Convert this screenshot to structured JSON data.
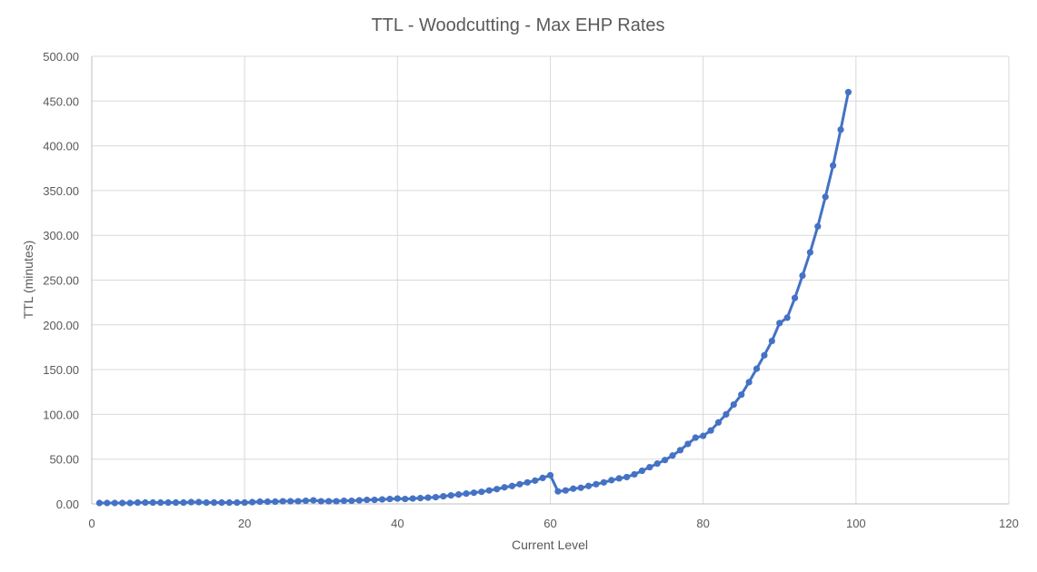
{
  "chart_data": {
    "type": "line",
    "title": "TTL  - Woodcutting  - Max EHP Rates",
    "xlabel": "Current Level",
    "ylabel": "TTL (minutes)",
    "xlim": [
      0,
      120
    ],
    "ylim": [
      0,
      500
    ],
    "x_ticks": [
      "0",
      "20",
      "40",
      "60",
      "80",
      "100",
      "120"
    ],
    "y_ticks": [
      "0.00",
      "50.00",
      "100.00",
      "150.00",
      "200.00",
      "250.00",
      "300.00",
      "350.00",
      "400.00",
      "450.00",
      "500.00"
    ],
    "grid": true,
    "legend": "none",
    "series": [
      {
        "color": "#4472c4",
        "x": [
          1,
          2,
          3,
          4,
          5,
          6,
          7,
          8,
          9,
          10,
          11,
          12,
          13,
          14,
          15,
          16,
          17,
          18,
          19,
          20,
          21,
          22,
          23,
          24,
          25,
          26,
          27,
          28,
          29,
          30,
          31,
          32,
          33,
          34,
          35,
          36,
          37,
          38,
          39,
          40,
          41,
          42,
          43,
          44,
          45,
          46,
          47,
          48,
          49,
          50,
          51,
          52,
          53,
          54,
          55,
          56,
          57,
          58,
          59,
          60,
          61,
          62,
          63,
          64,
          65,
          66,
          67,
          68,
          69,
          70,
          71,
          72,
          73,
          74,
          75,
          76,
          77,
          78,
          79,
          80,
          81,
          82,
          83,
          84,
          85,
          86,
          87,
          88,
          89,
          90,
          91,
          92,
          93,
          94,
          95,
          96,
          97,
          98,
          99
        ],
        "values": [
          1,
          1,
          1,
          1,
          1,
          1.5,
          1.5,
          1.5,
          1.5,
          1.5,
          1.5,
          1.5,
          2,
          2,
          1.5,
          1.5,
          1.5,
          1.5,
          1.5,
          1.5,
          2,
          2.5,
          2.5,
          2.5,
          3,
          3,
          3,
          3.5,
          4,
          3,
          3,
          3,
          3.5,
          3.5,
          4,
          4.5,
          4.5,
          5,
          5.5,
          6,
          5.5,
          6,
          6.5,
          7,
          7.5,
          8.5,
          9.5,
          10.5,
          11.5,
          12.5,
          13.5,
          15,
          16.5,
          18.5,
          20,
          22,
          24,
          26,
          29,
          32,
          14,
          15,
          17,
          18,
          20,
          22,
          24,
          26.5,
          28.5,
          30,
          33,
          37,
          41,
          45,
          49,
          54,
          60,
          67,
          74,
          76,
          82,
          91,
          100,
          111,
          122,
          136,
          151,
          166,
          182,
          202,
          208,
          230,
          255,
          281,
          310,
          343,
          378,
          418,
          460
        ]
      }
    ]
  }
}
